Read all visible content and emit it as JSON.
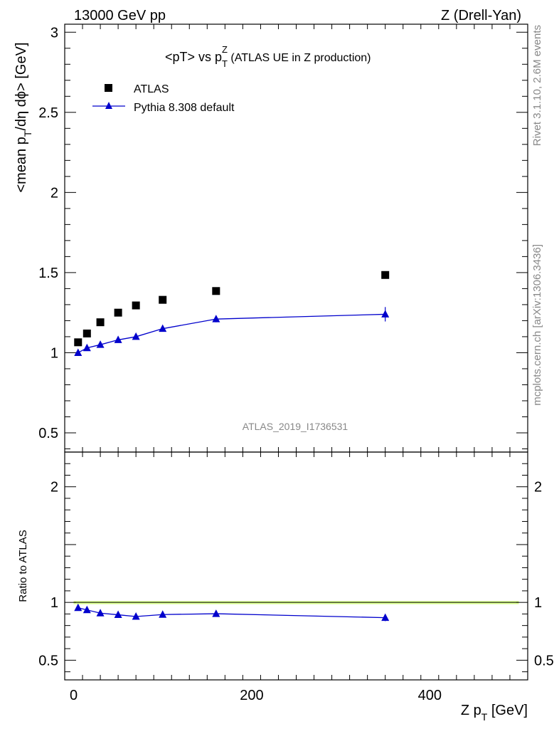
{
  "header": {
    "left": "13000 GeV pp",
    "right": "Z (Drell-Yan)"
  },
  "title": {
    "main": "<pT> vs p",
    "sub": "T",
    "sup": "Z",
    "rest": " (ATLAS UE in Z production)"
  },
  "side_text": {
    "rivet": "Rivet 3.1.10,  2.6M events",
    "mcplots": "mcplots.cern.ch [arXiv:1306.3436]"
  },
  "watermark": "ATLAS_2019_I1736531",
  "axes": {
    "ylabel_main": {
      "part1": "<mean p",
      "sub1": "T",
      "part2": "/dη dϕ> [GeV]"
    },
    "ylabel_ratio": "Ratio to ATLAS",
    "xlabel": {
      "part1": "Z p",
      "sub": "T",
      "part2": " [GeV]"
    }
  },
  "chart_data": [
    {
      "type": "scatter",
      "panel": "main",
      "xlim": [
        -10,
        510
      ],
      "ylim": [
        0.38,
        3.05
      ],
      "x_ticks": [
        0,
        200,
        400
      ],
      "y_ticks": [
        0.5,
        1,
        1.5,
        2,
        2.5,
        3
      ],
      "y_tick_labels": [
        "0.5",
        "1",
        "1.5",
        "2",
        "2.5",
        "3"
      ],
      "legend_position": "top-left",
      "series": [
        {
          "name": "ATLAS",
          "marker": "square",
          "color": "#000000",
          "x": [
            5,
            15,
            30,
            50,
            70,
            100,
            160,
            350
          ],
          "y": [
            1.065,
            1.12,
            1.19,
            1.25,
            1.295,
            1.33,
            1.385,
            1.485
          ],
          "err": [
            0.005,
            0.005,
            0.005,
            0.006,
            0.006,
            0.007,
            0.008,
            0.01
          ]
        },
        {
          "name": "Pythia 8.308 default",
          "marker": "triangle",
          "color": "#0000cc",
          "x": [
            5,
            15,
            30,
            50,
            70,
            100,
            160,
            350
          ],
          "y": [
            1.0,
            1.03,
            1.05,
            1.08,
            1.1,
            1.15,
            1.21,
            1.24
          ],
          "err": [
            0.007,
            0.007,
            0.008,
            0.008,
            0.01,
            0.012,
            0.02,
            0.045
          ]
        }
      ]
    },
    {
      "type": "line",
      "panel": "ratio",
      "xlim": [
        -10,
        510
      ],
      "ylim": [
        0.33,
        2.3
      ],
      "x_ticks": [
        0,
        200,
        400
      ],
      "x_tick_labels": [
        "0",
        "200",
        "400"
      ],
      "y_ticks": [
        0.5,
        1,
        2
      ],
      "y_tick_labels": [
        "0.5",
        "1",
        "2"
      ],
      "band_color": "#ccff66",
      "series": [
        {
          "name": "Pythia 8.308 default",
          "color": "#0000cc",
          "x": [
            5,
            15,
            30,
            50,
            70,
            100,
            160,
            350
          ],
          "y": [
            0.953,
            0.935,
            0.907,
            0.893,
            0.878,
            0.895,
            0.902,
            0.868
          ],
          "err": [
            0.008,
            0.008,
            0.008,
            0.008,
            0.01,
            0.01,
            0.014,
            0.03
          ]
        }
      ]
    }
  ]
}
